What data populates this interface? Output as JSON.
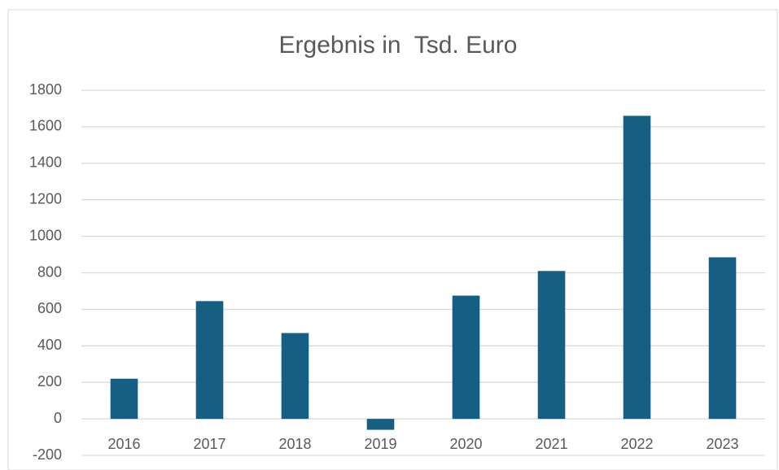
{
  "chart_data": {
    "type": "bar",
    "title": "Ergebnis in  Tsd. Euro",
    "categories": [
      "2016",
      "2017",
      "2018",
      "2019",
      "2020",
      "2021",
      "2022",
      "2023"
    ],
    "values": [
      220,
      645,
      470,
      -60,
      675,
      810,
      1660,
      885
    ],
    "color": "#156082",
    "ylim": [
      -200,
      1800
    ],
    "yticks": [
      -200,
      0,
      200,
      400,
      600,
      800,
      1000,
      1200,
      1400,
      1600,
      1800
    ],
    "grid": true
  }
}
